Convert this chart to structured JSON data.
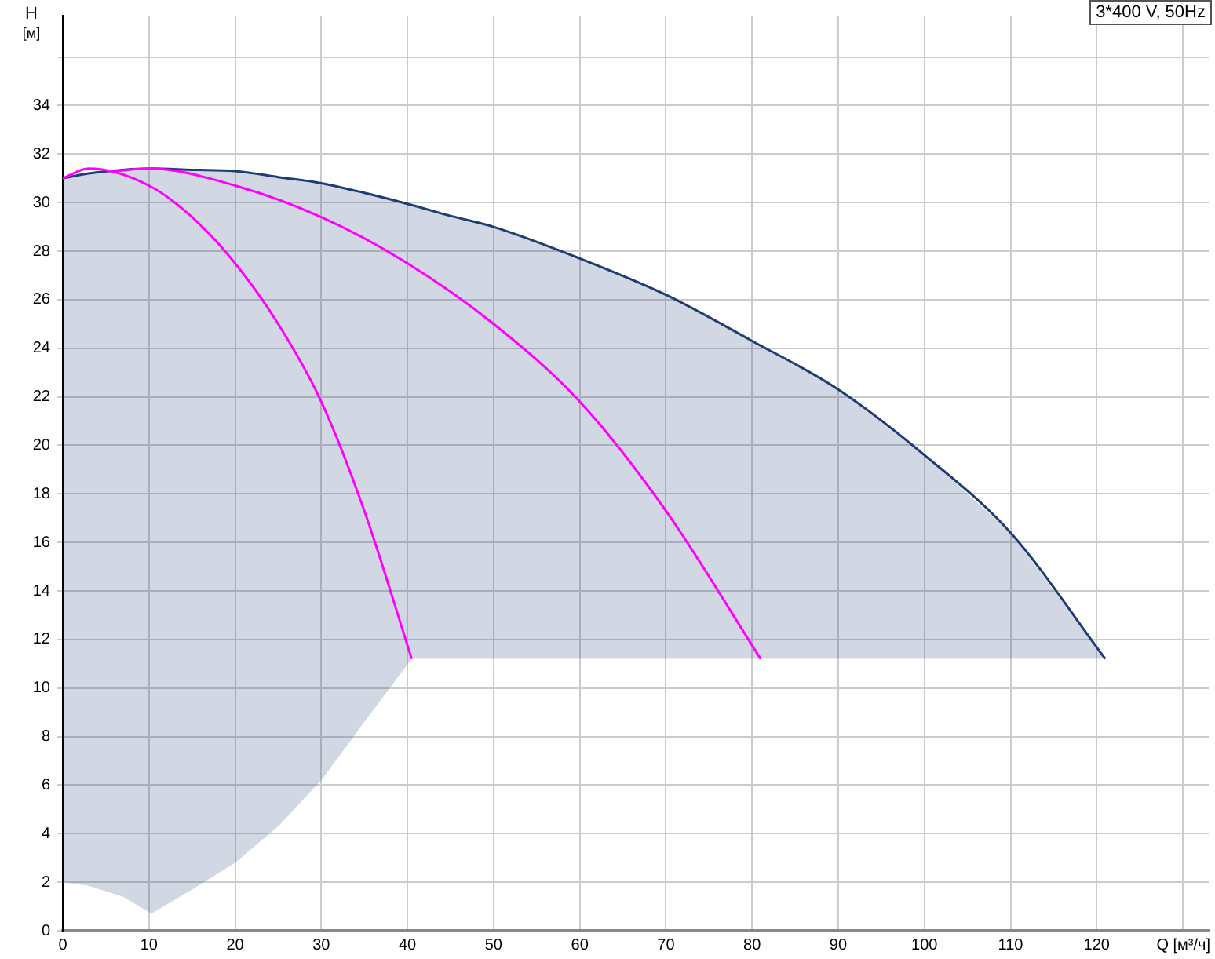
{
  "chart_data": {
    "type": "line",
    "xlabel": "Q [м³/ч]",
    "ylabel": "H [м]",
    "annotations": [
      "3*400 V, 50Hz"
    ],
    "xlim": [
      0,
      133
    ],
    "ylim": [
      0,
      37.7
    ],
    "xticks": [
      0,
      10,
      20,
      30,
      40,
      50,
      60,
      70,
      80,
      90,
      100,
      110,
      120,
      {
        "value": 130,
        "label": null
      }
    ],
    "yticks": [
      0,
      2,
      4,
      6,
      8,
      10,
      12,
      14,
      16,
      18,
      20,
      22,
      24,
      26,
      28,
      30,
      32,
      34,
      {
        "value": 36,
        "label": null
      }
    ],
    "grid": true,
    "legend": false,
    "marker": "none",
    "line_style": "solid",
    "series": [
      {
        "type": "line",
        "color": "#ff00ff",
        "x": [
          0,
          3,
          10,
          15,
          20,
          25,
          30,
          35,
          40.5
        ],
        "values": [
          31.0,
          31.4,
          30.7,
          29.4,
          27.5,
          25.0,
          21.8,
          17.3,
          11.2
        ]
      },
      {
        "type": "line",
        "color": "#ff00ff",
        "x": [
          6,
          10,
          20,
          30,
          40,
          50,
          60,
          70,
          81
        ],
        "values": [
          31.3,
          31.4,
          30.7,
          29.4,
          27.5,
          25.0,
          21.8,
          17.3,
          11.2
        ]
      },
      {
        "type": "line",
        "color": "#1f3d73",
        "x": [
          0,
          3,
          7,
          10.3,
          15,
          20,
          25,
          30,
          35,
          40.5,
          45,
          50,
          60,
          70,
          80,
          90,
          100,
          110,
          121
        ],
        "values": [
          31.0,
          31.2,
          31.35,
          31.4,
          31.35,
          31.3,
          31.05,
          30.8,
          30.4,
          29.9,
          29.45,
          29.0,
          27.7,
          26.2,
          24.3,
          22.3,
          19.6,
          16.4,
          11.2
        ],
        "upper": [
          31.0,
          31.2,
          31.35,
          31.4,
          31.35,
          31.3,
          31.05,
          30.8,
          30.4,
          29.9,
          29.45,
          29.0,
          27.7,
          26.2,
          24.3,
          22.3,
          19.6,
          16.4,
          11.2
        ],
        "lower": [
          2,
          1.85,
          1.4,
          0.7,
          1.7,
          2.8,
          4.3,
          6.2,
          8.6,
          11.2,
          11.2,
          11.2,
          11.2,
          11.2,
          11.2,
          11.2,
          11.2,
          11.2,
          11.2
        ]
      }
    ]
  }
}
